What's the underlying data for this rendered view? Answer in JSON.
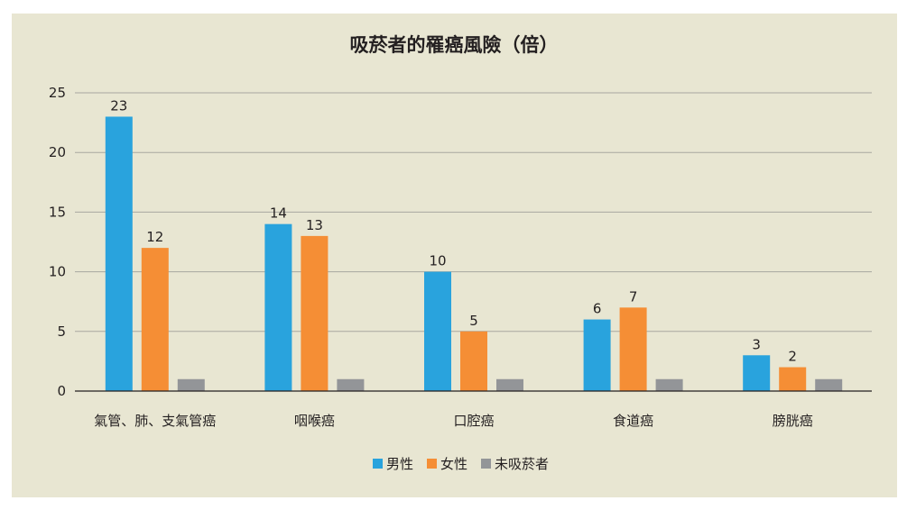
{
  "chart_data": {
    "type": "bar",
    "title": "吸菸者的罹癌風險（倍）",
    "xlabel": "",
    "ylabel": "",
    "categories": [
      "氣管、肺、支氣管癌",
      "咽喉癌",
      "口腔癌",
      "食道癌",
      "膀胱癌"
    ],
    "series": [
      {
        "name": "男性",
        "values": [
          23,
          14,
          10,
          6,
          3
        ],
        "labels": [
          "23",
          "14",
          "10",
          "6",
          "3"
        ],
        "color": "#29a3dd"
      },
      {
        "name": "女性",
        "values": [
          12,
          13,
          5,
          7,
          2
        ],
        "labels": [
          "12",
          "13",
          "5",
          "7",
          "2"
        ],
        "color": "#f58e35"
      },
      {
        "name": "未吸菸者",
        "values": [
          1,
          1,
          1,
          1,
          1
        ],
        "labels": [
          "",
          "",
          "",
          "",
          ""
        ],
        "color": "#939598"
      }
    ],
    "ylim": [
      0,
      25
    ],
    "yticks": [
      0,
      5,
      10,
      15,
      20,
      25
    ],
    "grid": true,
    "legend_position": "bottom",
    "background_color": "#e8e6d2",
    "gridline_color": "#a7a7a0",
    "axis_color": "#231f20"
  }
}
